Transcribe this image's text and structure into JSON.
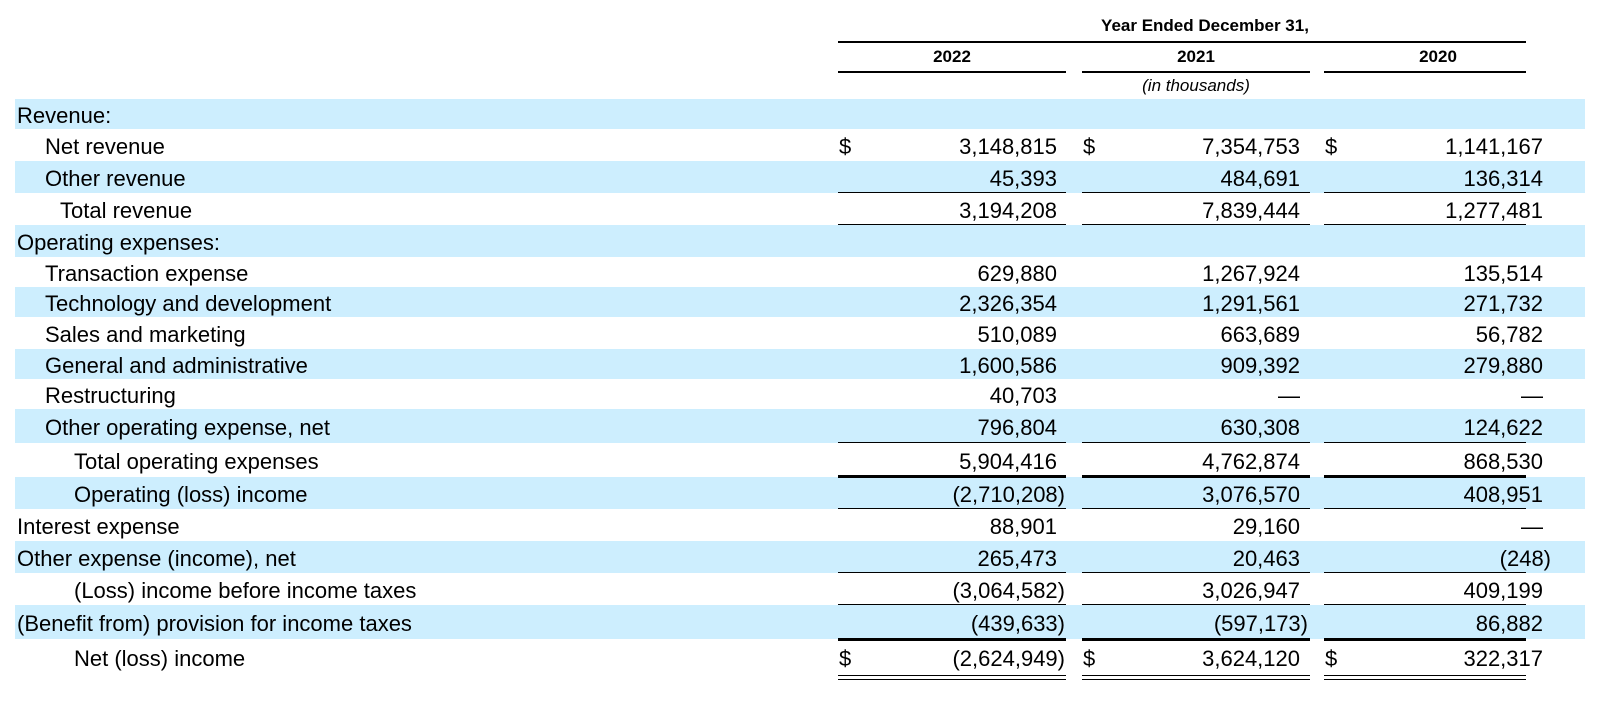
{
  "header": {
    "period_title": "Year Ended December 31,",
    "years": [
      "2022",
      "2021",
      "2020"
    ],
    "units": "(in thousands)"
  },
  "rows": [
    {
      "label": "Revenue:",
      "values": [
        "",
        "",
        ""
      ]
    },
    {
      "label": "Net revenue",
      "values": [
        "3,148,815",
        "7,354,753",
        "1,141,167"
      ]
    },
    {
      "label": "Other revenue",
      "values": [
        "45,393",
        "484,691",
        "136,314"
      ]
    },
    {
      "label": "Total revenue",
      "values": [
        "3,194,208",
        "7,839,444",
        "1,277,481"
      ]
    },
    {
      "label": "Operating expenses:",
      "values": [
        "",
        "",
        ""
      ]
    },
    {
      "label": "Transaction expense",
      "values": [
        "629,880",
        "1,267,924",
        "135,514"
      ]
    },
    {
      "label": "Technology and development",
      "values": [
        "2,326,354",
        "1,291,561",
        "271,732"
      ]
    },
    {
      "label": "Sales and marketing",
      "values": [
        "510,089",
        "663,689",
        "56,782"
      ]
    },
    {
      "label": "General and administrative",
      "values": [
        "1,600,586",
        "909,392",
        "279,880"
      ]
    },
    {
      "label": "Restructuring",
      "values": [
        "40,703",
        "—",
        "—"
      ]
    },
    {
      "label": "Other operating expense, net",
      "values": [
        "796,804",
        "630,308",
        "124,622"
      ]
    },
    {
      "label": "Total operating expenses",
      "values": [
        "5,904,416",
        "4,762,874",
        "868,530"
      ]
    },
    {
      "label": "Operating (loss) income",
      "values": [
        "(2,710,208)",
        "3,076,570",
        "408,951"
      ]
    },
    {
      "label": "Interest expense",
      "values": [
        "88,901",
        "29,160",
        "—"
      ]
    },
    {
      "label": "Other expense (income), net",
      "values": [
        "265,473",
        "20,463",
        "(248)"
      ]
    },
    {
      "label": "(Loss) income before income taxes",
      "values": [
        "(3,064,582)",
        "3,026,947",
        "409,199"
      ]
    },
    {
      "label": "(Benefit from) provision for income taxes",
      "values": [
        "(439,633)",
        "(597,173)",
        "86,882"
      ]
    },
    {
      "label": "Net (loss) income",
      "values": [
        "(2,624,949)",
        "3,624,120",
        "322,317"
      ]
    }
  ],
  "currency_symbol": "$"
}
